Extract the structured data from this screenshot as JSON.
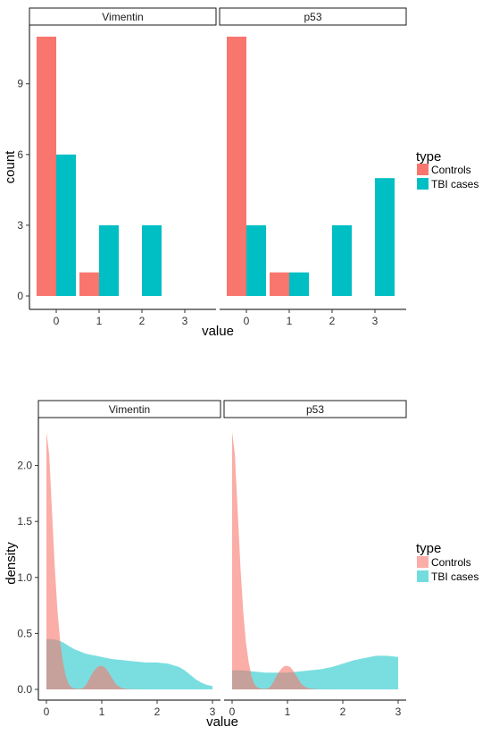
{
  "colors": {
    "controls": "#F8766D",
    "tbi": "#00BFC4",
    "strip_fill": "#ffffff",
    "axis": "#333333"
  },
  "chart_data": [
    {
      "type": "bar",
      "xlabel": "value",
      "ylabel": "count",
      "ylim": [
        0,
        11.5
      ],
      "yticks": [
        0,
        3,
        6,
        9
      ],
      "xticks": [
        0,
        1,
        2,
        3
      ],
      "legend": {
        "title": "type",
        "placement": "right",
        "entries": [
          "Controls",
          "TBI cases"
        ]
      },
      "panels": [
        {
          "strip": "Vimentin",
          "series": [
            {
              "name": "Controls",
              "x": [
                0,
                1,
                2,
                3
              ],
              "values": [
                11,
                1,
                0,
                0
              ]
            },
            {
              "name": "TBI cases",
              "x": [
                0,
                1,
                2,
                3
              ],
              "values": [
                6,
                3,
                3,
                0
              ]
            }
          ]
        },
        {
          "strip": "p53",
          "series": [
            {
              "name": "Controls",
              "x": [
                0,
                1,
                2,
                3
              ],
              "values": [
                11,
                1,
                0,
                0
              ]
            },
            {
              "name": "TBI cases",
              "x": [
                0,
                1,
                2,
                3
              ],
              "values": [
                3,
                1,
                3,
                5
              ]
            }
          ]
        }
      ]
    },
    {
      "type": "area",
      "xlabel": "value",
      "ylabel": "density",
      "xlim": [
        0,
        3
      ],
      "ylim": [
        0,
        2.35
      ],
      "yticks": [
        "0.0",
        "0.5",
        "1.0",
        "1.5",
        "2.0"
      ],
      "xticks": [
        0,
        1,
        2,
        3
      ],
      "legend": {
        "title": "type",
        "placement": "right",
        "entries": [
          "Controls",
          "TBI cases"
        ]
      },
      "panels": [
        {
          "strip": "Vimentin",
          "series": [
            {
              "name": "Controls",
              "x": [
                0,
                0.05,
                0.1,
                0.15,
                0.2,
                0.25,
                0.3,
                0.35,
                0.4,
                0.45,
                0.5,
                0.55,
                0.6,
                0.65,
                0.7,
                0.75,
                0.8,
                0.85,
                0.9,
                0.95,
                1.0,
                1.05,
                1.1,
                1.15,
                1.2,
                1.25,
                1.3,
                1.35,
                1.4,
                1.5,
                1.6,
                1.8
              ],
              "values": [
                2.3,
                2.1,
                1.6,
                1.1,
                0.7,
                0.42,
                0.24,
                0.12,
                0.05,
                0.02,
                0.01,
                0.005,
                0.005,
                0.01,
                0.03,
                0.07,
                0.12,
                0.16,
                0.19,
                0.21,
                0.21,
                0.2,
                0.17,
                0.13,
                0.09,
                0.05,
                0.03,
                0.015,
                0.008,
                0.003,
                0.001,
                0.0
              ]
            },
            {
              "name": "TBI cases",
              "x": [
                0,
                0.1,
                0.2,
                0.3,
                0.4,
                0.5,
                0.6,
                0.7,
                0.8,
                0.9,
                1.0,
                1.2,
                1.4,
                1.6,
                1.8,
                2.0,
                2.2,
                2.4,
                2.5,
                2.6,
                2.7,
                2.8,
                2.9,
                3.0
              ],
              "values": [
                0.45,
                0.45,
                0.44,
                0.42,
                0.39,
                0.36,
                0.34,
                0.32,
                0.31,
                0.3,
                0.29,
                0.27,
                0.26,
                0.25,
                0.24,
                0.24,
                0.23,
                0.2,
                0.17,
                0.13,
                0.09,
                0.06,
                0.04,
                0.03
              ]
            }
          ]
        },
        {
          "strip": "p53",
          "series": [
            {
              "name": "Controls",
              "x": [
                0,
                0.05,
                0.1,
                0.15,
                0.2,
                0.25,
                0.3,
                0.35,
                0.4,
                0.45,
                0.5,
                0.55,
                0.6,
                0.65,
                0.7,
                0.75,
                0.8,
                0.85,
                0.9,
                0.95,
                1.0,
                1.05,
                1.1,
                1.15,
                1.2,
                1.25,
                1.3,
                1.35,
                1.4,
                1.5,
                1.6,
                1.8
              ],
              "values": [
                2.3,
                2.1,
                1.6,
                1.1,
                0.7,
                0.42,
                0.24,
                0.12,
                0.05,
                0.02,
                0.01,
                0.005,
                0.005,
                0.01,
                0.03,
                0.07,
                0.12,
                0.16,
                0.19,
                0.21,
                0.21,
                0.2,
                0.17,
                0.13,
                0.09,
                0.05,
                0.03,
                0.015,
                0.008,
                0.003,
                0.001,
                0.0
              ]
            },
            {
              "name": "TBI cases",
              "x": [
                0,
                0.2,
                0.4,
                0.6,
                0.8,
                1.0,
                1.2,
                1.4,
                1.6,
                1.8,
                2.0,
                2.2,
                2.4,
                2.6,
                2.8,
                3.0
              ],
              "values": [
                0.17,
                0.17,
                0.16,
                0.15,
                0.15,
                0.15,
                0.16,
                0.17,
                0.18,
                0.2,
                0.23,
                0.26,
                0.28,
                0.3,
                0.3,
                0.29
              ]
            }
          ]
        }
      ]
    }
  ]
}
